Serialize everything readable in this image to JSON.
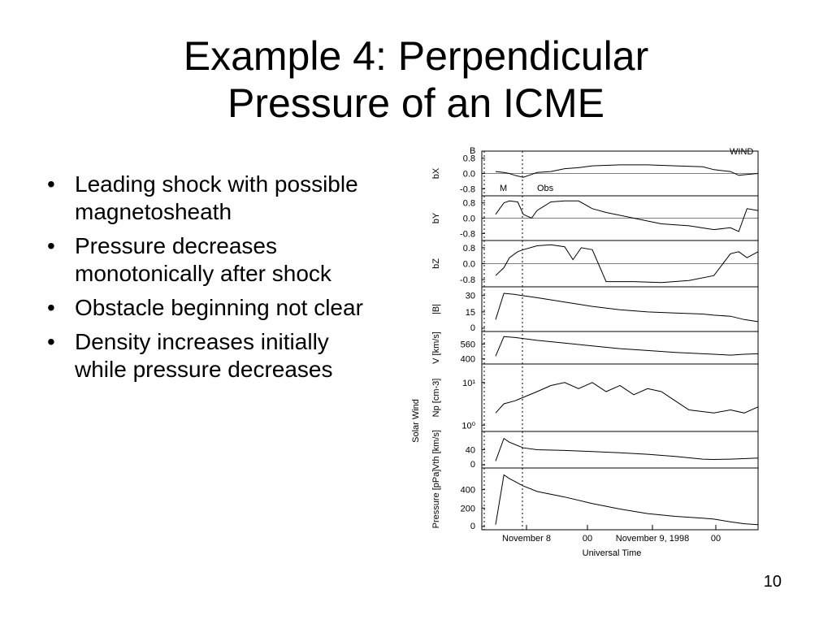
{
  "slide": {
    "title_line1": "Example 4: Perpendicular",
    "title_line2": "Pressure of an ICME",
    "bullets": [
      "Leading shock with possible magnetosheath",
      "Pressure decreases monotonically after shock",
      "Obstacle beginning not clear",
      "Density increases initially while pressure decreases"
    ],
    "bullet_glyph": "•",
    "page_number": "10"
  },
  "chart_data": {
    "type": "line",
    "top_left_label": "B",
    "top_right_label": "WIND",
    "region_labels": [
      "M",
      "Obs"
    ],
    "group_label": "Solar Wind",
    "xlabel": "Universal Time",
    "x_tick_labels": [
      "November 8",
      "00",
      "November 9, 1998",
      "00"
    ],
    "panels": [
      {
        "ylabel": "bX",
        "yticks": [
          "0.8",
          "0.0",
          "-0.8"
        ],
        "ylim": [
          -1,
          1
        ],
        "series": [
          [
            0.05,
            0.1
          ],
          [
            0.08,
            0.05
          ],
          [
            0.1,
            0.0
          ],
          [
            0.12,
            -0.1
          ],
          [
            0.15,
            -0.2
          ],
          [
            0.18,
            -0.05
          ],
          [
            0.2,
            0.05
          ],
          [
            0.25,
            0.1
          ],
          [
            0.3,
            0.25
          ],
          [
            0.35,
            0.3
          ],
          [
            0.4,
            0.4
          ],
          [
            0.5,
            0.45
          ],
          [
            0.6,
            0.45
          ],
          [
            0.7,
            0.4
          ],
          [
            0.8,
            0.35
          ],
          [
            0.84,
            0.2
          ],
          [
            0.9,
            0.1
          ],
          [
            0.93,
            -0.1
          ],
          [
            0.96,
            -0.05
          ],
          [
            1.0,
            0.0
          ]
        ]
      },
      {
        "ylabel": "bY",
        "yticks": [
          "0.8",
          "0.0",
          "-0.8"
        ],
        "ylim": [
          -1,
          1
        ],
        "series": [
          [
            0.05,
            0.2
          ],
          [
            0.08,
            0.8
          ],
          [
            0.1,
            0.9
          ],
          [
            0.13,
            0.85
          ],
          [
            0.15,
            0.2
          ],
          [
            0.18,
            0.0
          ],
          [
            0.2,
            0.4
          ],
          [
            0.25,
            0.85
          ],
          [
            0.3,
            0.9
          ],
          [
            0.35,
            0.9
          ],
          [
            0.4,
            0.5
          ],
          [
            0.45,
            0.3
          ],
          [
            0.55,
            0.0
          ],
          [
            0.65,
            -0.3
          ],
          [
            0.75,
            -0.4
          ],
          [
            0.84,
            -0.6
          ],
          [
            0.9,
            -0.5
          ],
          [
            0.93,
            -0.7
          ],
          [
            0.96,
            0.5
          ],
          [
            1.0,
            0.4
          ]
        ]
      },
      {
        "ylabel": "bZ",
        "yticks": [
          "0.8",
          "0.0",
          "-0.8"
        ],
        "ylim": [
          -1,
          1
        ],
        "series": [
          [
            0.05,
            -0.6
          ],
          [
            0.08,
            -0.2
          ],
          [
            0.1,
            0.3
          ],
          [
            0.13,
            0.6
          ],
          [
            0.15,
            0.7
          ],
          [
            0.2,
            0.9
          ],
          [
            0.25,
            0.95
          ],
          [
            0.3,
            0.85
          ],
          [
            0.33,
            0.2
          ],
          [
            0.36,
            0.8
          ],
          [
            0.4,
            0.7
          ],
          [
            0.45,
            -0.9
          ],
          [
            0.55,
            -0.9
          ],
          [
            0.65,
            -0.95
          ],
          [
            0.75,
            -0.85
          ],
          [
            0.84,
            -0.6
          ],
          [
            0.9,
            0.5
          ],
          [
            0.93,
            0.6
          ],
          [
            0.96,
            0.3
          ],
          [
            1.0,
            0.6
          ]
        ]
      },
      {
        "ylabel": "|B|",
        "yticks": [
          "30",
          "15",
          "0"
        ],
        "ylim": [
          0,
          35
        ],
        "series": [
          [
            0.05,
            8
          ],
          [
            0.08,
            32
          ],
          [
            0.12,
            31
          ],
          [
            0.2,
            28
          ],
          [
            0.3,
            24
          ],
          [
            0.4,
            20
          ],
          [
            0.5,
            17
          ],
          [
            0.6,
            15
          ],
          [
            0.7,
            14
          ],
          [
            0.8,
            13
          ],
          [
            0.84,
            12
          ],
          [
            0.9,
            11
          ],
          [
            0.95,
            8
          ],
          [
            1.0,
            6
          ]
        ]
      },
      {
        "ylabel": "V [km/s]",
        "yticks": [
          "560",
          "400"
        ],
        "ylim": [
          380,
          660
        ],
        "series": [
          [
            0.05,
            430
          ],
          [
            0.08,
            640
          ],
          [
            0.12,
            630
          ],
          [
            0.2,
            600
          ],
          [
            0.3,
            570
          ],
          [
            0.4,
            540
          ],
          [
            0.5,
            510
          ],
          [
            0.6,
            490
          ],
          [
            0.7,
            470
          ],
          [
            0.8,
            455
          ],
          [
            0.84,
            450
          ],
          [
            0.9,
            440
          ],
          [
            0.95,
            450
          ],
          [
            1.0,
            455
          ]
        ]
      },
      {
        "ylabel": "Np [cm-3]",
        "yticks": [
          "10¹",
          "10⁰"
        ],
        "ylim": [
          0,
          2
        ],
        "series": [
          [
            0.05,
            0.5
          ],
          [
            0.08,
            0.8
          ],
          [
            0.12,
            0.9
          ],
          [
            0.2,
            1.2
          ],
          [
            0.25,
            1.4
          ],
          [
            0.3,
            1.5
          ],
          [
            0.35,
            1.3
          ],
          [
            0.4,
            1.5
          ],
          [
            0.45,
            1.2
          ],
          [
            0.5,
            1.4
          ],
          [
            0.55,
            1.1
          ],
          [
            0.6,
            1.3
          ],
          [
            0.65,
            1.2
          ],
          [
            0.7,
            0.9
          ],
          [
            0.75,
            0.6
          ],
          [
            0.84,
            0.5
          ],
          [
            0.9,
            0.6
          ],
          [
            0.95,
            0.5
          ],
          [
            1.0,
            0.7
          ]
        ]
      },
      {
        "ylabel": "Vth [km/s]",
        "yticks": [
          "40",
          "0"
        ],
        "ylim": [
          0,
          80
        ],
        "series": [
          [
            0.05,
            10
          ],
          [
            0.08,
            70
          ],
          [
            0.1,
            60
          ],
          [
            0.15,
            45
          ],
          [
            0.2,
            40
          ],
          [
            0.3,
            38
          ],
          [
            0.4,
            35
          ],
          [
            0.5,
            32
          ],
          [
            0.6,
            28
          ],
          [
            0.7,
            22
          ],
          [
            0.8,
            15
          ],
          [
            0.84,
            14
          ],
          [
            0.9,
            15
          ],
          [
            1.0,
            18
          ]
        ]
      },
      {
        "ylabel": "Pressure [pPa]",
        "yticks": [
          "400",
          "200",
          "0"
        ],
        "ylim": [
          0,
          600
        ],
        "series": [
          [
            0.05,
            20
          ],
          [
            0.08,
            560
          ],
          [
            0.1,
            520
          ],
          [
            0.15,
            440
          ],
          [
            0.2,
            380
          ],
          [
            0.3,
            320
          ],
          [
            0.4,
            250
          ],
          [
            0.5,
            190
          ],
          [
            0.6,
            140
          ],
          [
            0.7,
            110
          ],
          [
            0.8,
            90
          ],
          [
            0.84,
            80
          ],
          [
            0.9,
            50
          ],
          [
            0.95,
            30
          ],
          [
            1.0,
            20
          ]
        ]
      }
    ]
  }
}
